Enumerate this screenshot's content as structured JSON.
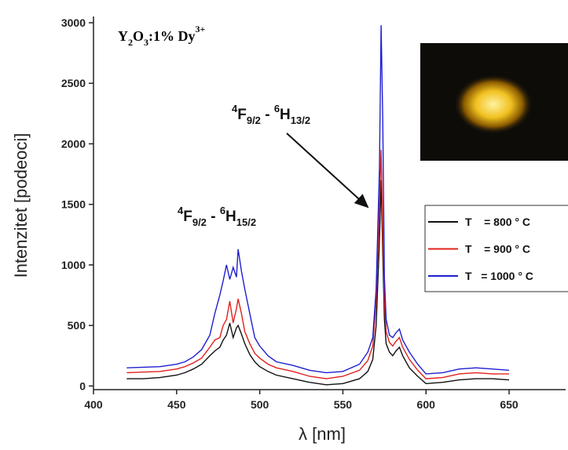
{
  "chart_data": {
    "type": "line",
    "title": [
      "Y",
      "2",
      "O",
      "3",
      ":1% Dy",
      "3+"
    ],
    "xlabel": "λ [nm]",
    "ylabel": "Intenzitet [podeoci]",
    "annotations": [
      {
        "text": [
          "4",
          "F",
          "9/2",
          " - ",
          "6",
          "H",
          "13/2"
        ]
      },
      {
        "text": [
          "4",
          "F",
          "9/2",
          " - ",
          "6",
          "H",
          "15/2"
        ]
      }
    ],
    "xlim": [
      400,
      684
    ],
    "ylim": [
      -30,
      3000
    ],
    "xticks": [
      400,
      450,
      500,
      550,
      600,
      650
    ],
    "yticks": [
      0,
      500,
      1000,
      1500,
      2000,
      2500,
      3000
    ],
    "legend": "right",
    "x": [
      420,
      430,
      440,
      450,
      455,
      460,
      465,
      470,
      473,
      476,
      478,
      480,
      482,
      484,
      486,
      487,
      489,
      491,
      494,
      497,
      500,
      505,
      510,
      520,
      530,
      540,
      550,
      560,
      565,
      568,
      570,
      572,
      573,
      574,
      575,
      576,
      578,
      580,
      582,
      584,
      586,
      590,
      595,
      600,
      610,
      620,
      630,
      640,
      650
    ],
    "series": [
      {
        "name": "T    = 800 ° C",
        "color": "#111111",
        "values": [
          60,
          60,
          70,
          90,
          110,
          140,
          180,
          250,
          290,
          320,
          380,
          420,
          520,
          400,
          480,
          500,
          430,
          350,
          260,
          200,
          160,
          120,
          90,
          60,
          30,
          10,
          20,
          60,
          120,
          220,
          500,
          1200,
          1700,
          1100,
          550,
          350,
          280,
          250,
          290,
          320,
          250,
          150,
          80,
          20,
          30,
          50,
          60,
          60,
          50
        ]
      },
      {
        "name": "T    = 900 ° C",
        "color": "#e0201b",
        "values": [
          110,
          115,
          120,
          140,
          160,
          190,
          230,
          320,
          380,
          400,
          500,
          550,
          700,
          520,
          640,
          720,
          600,
          450,
          350,
          270,
          230,
          180,
          150,
          120,
          80,
          60,
          80,
          130,
          210,
          330,
          700,
          1500,
          1950,
          1300,
          700,
          450,
          360,
          330,
          370,
          400,
          320,
          220,
          130,
          60,
          70,
          100,
          110,
          100,
          100
        ]
      },
      {
        "name": "T   = 1000 ° C",
        "color": "#1f1fd0",
        "values": [
          150,
          155,
          160,
          180,
          200,
          240,
          300,
          420,
          600,
          750,
          870,
          1000,
          880,
          980,
          900,
          1130,
          950,
          800,
          600,
          400,
          330,
          250,
          200,
          170,
          130,
          110,
          120,
          180,
          280,
          400,
          800,
          1800,
          2980,
          2200,
          900,
          550,
          420,
          400,
          440,
          470,
          380,
          280,
          180,
          100,
          110,
          140,
          150,
          140,
          130
        ]
      }
    ]
  }
}
